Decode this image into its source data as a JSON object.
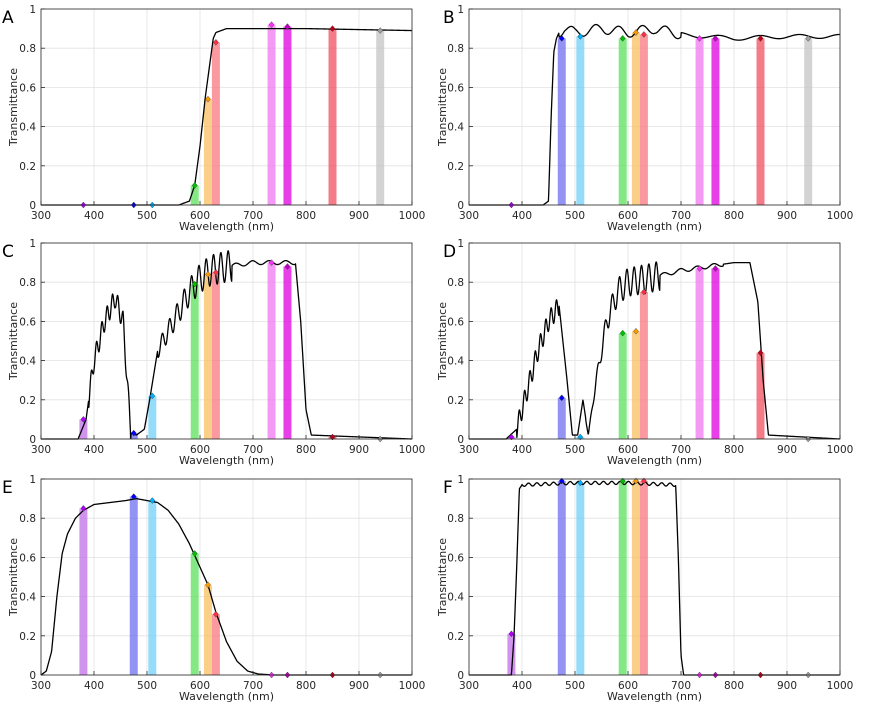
{
  "figure": {
    "panel_letters": [
      "A",
      "B",
      "C",
      "D",
      "E",
      "F"
    ]
  },
  "style": {
    "curve_color": "#000000",
    "grid_color": "#e2e2e2",
    "axis_color": "#262626",
    "band_colors": {
      "380": "#c070e8",
      "475": "#6f6ff0",
      "510": "#71d0f8",
      "590": "#5be05b",
      "615": "#f8c060",
      "630": "#f87880",
      "735": "#f078f0",
      "765": "#e000e0",
      "850": "#f05060",
      "940": "#c4c4c4"
    },
    "marker_colors": {
      "380": "#b000ff",
      "475": "#0000ff",
      "510": "#00b0ff",
      "590": "#00c000",
      "615": "#ff9900",
      "630": "#ff3040",
      "735": "#ff30ff",
      "765": "#c000c0",
      "850": "#c00018",
      "940": "#a0a0a0"
    }
  },
  "chart_data": [
    {
      "panel": "A",
      "type": "line",
      "xlabel": "Wavelength (nm)",
      "ylabel": "Transmittance",
      "xlim": [
        300,
        1000
      ],
      "ylim": [
        0,
        1
      ],
      "xticks": [
        300,
        400,
        500,
        600,
        700,
        800,
        900,
        1000
      ],
      "yticks": [
        0,
        0.2,
        0.4,
        0.6,
        0.8,
        1
      ],
      "curve": {
        "kind": "longpass",
        "x": [
          300,
          560,
          580,
          590,
          600,
          610,
          620,
          625,
          630,
          650,
          700,
          800,
          1000
        ],
        "y": [
          0.0,
          0.0,
          0.02,
          0.1,
          0.3,
          0.55,
          0.75,
          0.85,
          0.88,
          0.9,
          0.9,
          0.9,
          0.89
        ]
      },
      "bands": [
        {
          "center": 380,
          "value": 0.0
        },
        {
          "center": 475,
          "value": 0.0
        },
        {
          "center": 510,
          "value": 0.0
        },
        {
          "center": 590,
          "value": 0.1
        },
        {
          "center": 615,
          "value": 0.54
        },
        {
          "center": 630,
          "value": 0.83
        },
        {
          "center": 735,
          "value": 0.92
        },
        {
          "center": 765,
          "value": 0.91
        },
        {
          "center": 850,
          "value": 0.9
        },
        {
          "center": 940,
          "value": 0.89
        }
      ]
    },
    {
      "panel": "B",
      "type": "line",
      "xlabel": "Wavelength (nm)",
      "ylabel": "Transmittance",
      "xlim": [
        300,
        1000
      ],
      "ylim": [
        0,
        1
      ],
      "xticks": [
        300,
        400,
        500,
        600,
        700,
        800,
        900,
        1000
      ],
      "yticks": [
        0,
        0.2,
        0.4,
        0.6,
        0.8,
        1
      ],
      "curve": {
        "kind": "longpass-ripple",
        "x": [
          300,
          440,
          450,
          455,
          460,
          465,
          470,
          480,
          500,
          550,
          600,
          650,
          700,
          800,
          900,
          1000
        ],
        "y": [
          0.0,
          0.0,
          0.02,
          0.45,
          0.78,
          0.85,
          0.88,
          0.9,
          0.88,
          0.9,
          0.88,
          0.9,
          0.87,
          0.85,
          0.86,
          0.86
        ]
      },
      "bands": [
        {
          "center": 380,
          "value": 0.0
        },
        {
          "center": 475,
          "value": 0.85
        },
        {
          "center": 510,
          "value": 0.86
        },
        {
          "center": 590,
          "value": 0.85
        },
        {
          "center": 615,
          "value": 0.88
        },
        {
          "center": 630,
          "value": 0.87
        },
        {
          "center": 735,
          "value": 0.85
        },
        {
          "center": 765,
          "value": 0.85
        },
        {
          "center": 850,
          "value": 0.85
        },
        {
          "center": 940,
          "value": 0.85
        }
      ]
    },
    {
      "panel": "C",
      "type": "line",
      "xlabel": "Wavelength (nm)",
      "ylabel": "Transmittance",
      "xlim": [
        300,
        1000
      ],
      "ylim": [
        0,
        1
      ],
      "xticks": [
        300,
        400,
        500,
        600,
        700,
        800,
        900,
        1000
      ],
      "yticks": [
        0,
        0.2,
        0.4,
        0.6,
        0.8,
        1
      ],
      "curve": {
        "kind": "dual-band",
        "x": [
          300,
          370,
          385,
          400,
          420,
          440,
          455,
          465,
          470,
          480,
          495,
          505,
          520,
          550,
          580,
          600,
          620,
          650,
          700,
          780,
          790,
          800,
          810,
          1000
        ],
        "y": [
          0.0,
          0.0,
          0.1,
          0.4,
          0.6,
          0.72,
          0.6,
          0.2,
          0.03,
          0.02,
          0.05,
          0.2,
          0.45,
          0.6,
          0.75,
          0.82,
          0.86,
          0.88,
          0.9,
          0.9,
          0.6,
          0.15,
          0.02,
          0.0
        ]
      },
      "bands": [
        {
          "center": 380,
          "value": 0.1
        },
        {
          "center": 475,
          "value": 0.03
        },
        {
          "center": 510,
          "value": 0.22
        },
        {
          "center": 590,
          "value": 0.79
        },
        {
          "center": 615,
          "value": 0.84
        },
        {
          "center": 630,
          "value": 0.85
        },
        {
          "center": 735,
          "value": 0.9
        },
        {
          "center": 765,
          "value": 0.88
        },
        {
          "center": 850,
          "value": 0.01
        },
        {
          "center": 940,
          "value": 0.0
        }
      ]
    },
    {
      "panel": "D",
      "type": "line",
      "xlabel": "Wavelength (nm)",
      "ylabel": "Transmittance",
      "xlim": [
        300,
        1000
      ],
      "ylim": [
        0,
        1
      ],
      "xticks": [
        300,
        400,
        500,
        600,
        700,
        800,
        900,
        1000
      ],
      "yticks": [
        0,
        0.2,
        0.4,
        0.6,
        0.8,
        1
      ],
      "curve": {
        "kind": "dual-band",
        "x": [
          300,
          370,
          390,
          410,
          430,
          450,
          470,
          485,
          495,
          505,
          515,
          525,
          540,
          560,
          580,
          600,
          640,
          700,
          800,
          830,
          845,
          855,
          865,
          1000
        ],
        "y": [
          0.0,
          0.0,
          0.05,
          0.25,
          0.45,
          0.6,
          0.68,
          0.3,
          0.02,
          0.02,
          0.2,
          0.02,
          0.3,
          0.6,
          0.75,
          0.8,
          0.82,
          0.86,
          0.9,
          0.9,
          0.7,
          0.3,
          0.02,
          0.0
        ]
      },
      "bands": [
        {
          "center": 380,
          "value": 0.01
        },
        {
          "center": 475,
          "value": 0.21
        },
        {
          "center": 510,
          "value": 0.01
        },
        {
          "center": 590,
          "value": 0.54
        },
        {
          "center": 615,
          "value": 0.55
        },
        {
          "center": 630,
          "value": 0.75
        },
        {
          "center": 735,
          "value": 0.87
        },
        {
          "center": 765,
          "value": 0.87
        },
        {
          "center": 850,
          "value": 0.44
        },
        {
          "center": 940,
          "value": 0.0
        }
      ]
    },
    {
      "panel": "E",
      "type": "line",
      "xlabel": "Wavelength (nm)",
      "ylabel": "Transmittance",
      "xlim": [
        300,
        1000
      ],
      "ylim": [
        0,
        1
      ],
      "xticks": [
        300,
        400,
        500,
        600,
        700,
        800,
        900,
        1000
      ],
      "yticks": [
        0,
        0.2,
        0.4,
        0.6,
        0.8,
        1
      ],
      "curve": {
        "kind": "broad-bandpass",
        "x": [
          300,
          310,
          320,
          330,
          340,
          350,
          365,
          380,
          400,
          430,
          460,
          480,
          500,
          520,
          540,
          560,
          580,
          590,
          600,
          615,
          630,
          650,
          670,
          690,
          710,
          740,
          800,
          1000
        ],
        "y": [
          0.0,
          0.02,
          0.12,
          0.4,
          0.62,
          0.72,
          0.8,
          0.84,
          0.87,
          0.88,
          0.89,
          0.9,
          0.89,
          0.88,
          0.84,
          0.77,
          0.67,
          0.61,
          0.55,
          0.46,
          0.32,
          0.17,
          0.07,
          0.02,
          0.005,
          0.0,
          0.0,
          0.0
        ]
      },
      "bands": [
        {
          "center": 380,
          "value": 0.85
        },
        {
          "center": 475,
          "value": 0.91
        },
        {
          "center": 510,
          "value": 0.89
        },
        {
          "center": 590,
          "value": 0.62
        },
        {
          "center": 615,
          "value": 0.46
        },
        {
          "center": 630,
          "value": 0.31
        },
        {
          "center": 735,
          "value": 0.0
        },
        {
          "center": 765,
          "value": 0.0
        },
        {
          "center": 850,
          "value": 0.0
        },
        {
          "center": 940,
          "value": 0.0
        }
      ]
    },
    {
      "panel": "F",
      "type": "line",
      "xlabel": "Wavelength (nm)",
      "ylabel": "Transmittance",
      "xlim": [
        300,
        1000
      ],
      "ylim": [
        0,
        1
      ],
      "xticks": [
        300,
        400,
        500,
        600,
        700,
        800,
        900,
        1000
      ],
      "yticks": [
        0,
        0.2,
        0.4,
        0.6,
        0.8,
        1
      ],
      "curve": {
        "kind": "bandpass",
        "x": [
          300,
          380,
          385,
          390,
          395,
          400,
          500,
          600,
          690,
          695,
          700,
          705,
          1000
        ],
        "y": [
          0.0,
          0.0,
          0.2,
          0.55,
          0.95,
          0.97,
          0.98,
          0.98,
          0.97,
          0.6,
          0.1,
          0.0,
          0.0
        ]
      },
      "bands": [
        {
          "center": 380,
          "value": 0.21
        },
        {
          "center": 475,
          "value": 0.99
        },
        {
          "center": 510,
          "value": 0.98
        },
        {
          "center": 590,
          "value": 0.99
        },
        {
          "center": 615,
          "value": 0.99
        },
        {
          "center": 630,
          "value": 0.99
        },
        {
          "center": 735,
          "value": 0.0
        },
        {
          "center": 765,
          "value": 0.0
        },
        {
          "center": 850,
          "value": 0.0
        },
        {
          "center": 940,
          "value": 0.0
        }
      ]
    }
  ]
}
